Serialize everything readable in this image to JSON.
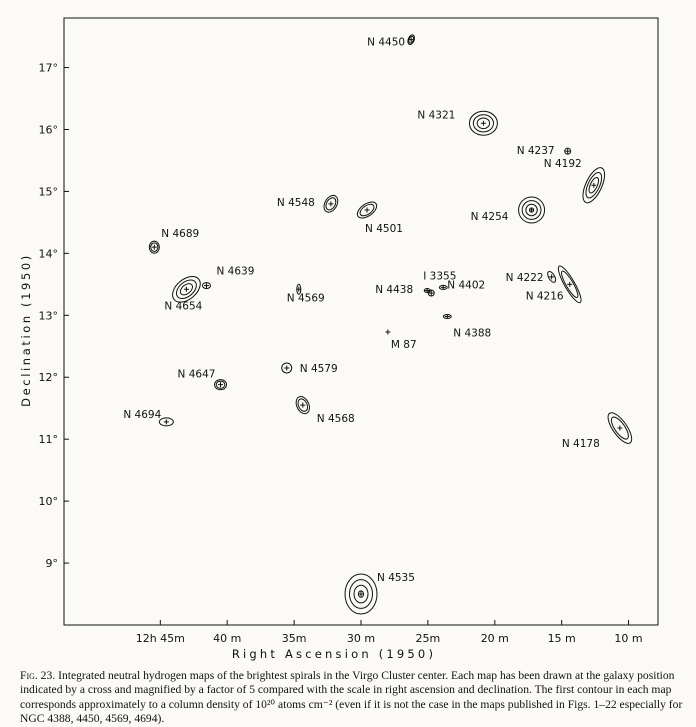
{
  "chart_data": {
    "type": "scatter",
    "xlabel": "Right Ascension (1950)",
    "ylabel": "Declination (1950)",
    "x_ticks": [
      {
        "value": 12.75,
        "label": "12h 45m"
      },
      {
        "value": 12.6667,
        "label": "40 m"
      },
      {
        "value": 12.5833,
        "label": "35m"
      },
      {
        "value": 12.5,
        "label": "30 m"
      },
      {
        "value": 12.4167,
        "label": "25m"
      },
      {
        "value": 12.3333,
        "label": "20 m"
      },
      {
        "value": 12.25,
        "label": "15 m"
      },
      {
        "value": 12.1667,
        "label": "10 m"
      }
    ],
    "y_ticks": [
      {
        "value": 9,
        "label": "9°"
      },
      {
        "value": 10,
        "label": "10°"
      },
      {
        "value": 11,
        "label": "11°"
      },
      {
        "value": 12,
        "label": "12°"
      },
      {
        "value": 13,
        "label": "13°"
      },
      {
        "value": 14,
        "label": "14°"
      },
      {
        "value": 15,
        "label": "15°"
      },
      {
        "value": 16,
        "label": "16°"
      },
      {
        "value": 17,
        "label": "17°"
      }
    ],
    "xlim": [
      12.87,
      12.13
    ],
    "ylim": [
      8.0,
      17.8
    ],
    "points": [
      {
        "name": "N 4450",
        "x": 12.4375,
        "y": 17.45
      },
      {
        "name": "N 4321",
        "x": 12.3475,
        "y": 16.1
      },
      {
        "name": "N 4237",
        "x": 12.2425,
        "y": 15.65
      },
      {
        "name": "N 4192",
        "x": 12.21,
        "y": 15.1
      },
      {
        "name": "N 4254",
        "x": 12.2875,
        "y": 14.7
      },
      {
        "name": "N 4548",
        "x": 12.5375,
        "y": 14.8
      },
      {
        "name": "N 4501",
        "x": 12.4925,
        "y": 14.7
      },
      {
        "name": "N 4689",
        "x": 12.7575,
        "y": 14.1
      },
      {
        "name": "N 4639",
        "x": 12.6925,
        "y": 13.48
      },
      {
        "name": "N 4654",
        "x": 12.7175,
        "y": 13.42
      },
      {
        "name": "N 4569",
        "x": 12.5775,
        "y": 13.42
      },
      {
        "name": "I 3355",
        "x": 12.4175,
        "y": 13.4
      },
      {
        "name": "N 4402",
        "x": 12.3975,
        "y": 13.45
      },
      {
        "name": "N 4438",
        "x": 12.4125,
        "y": 13.36
      },
      {
        "name": "N 4222",
        "x": 12.2625,
        "y": 13.62
      },
      {
        "name": "N 4216",
        "x": 12.24,
        "y": 13.5
      },
      {
        "name": "N 4388",
        "x": 12.3925,
        "y": 12.98
      },
      {
        "name": "M 87",
        "x": 12.4665,
        "y": 12.73
      },
      {
        "name": "N 4579",
        "x": 12.5925,
        "y": 12.15
      },
      {
        "name": "N 4647",
        "x": 12.675,
        "y": 11.88
      },
      {
        "name": "N 4568",
        "x": 12.5725,
        "y": 11.55
      },
      {
        "name": "N 4694",
        "x": 12.7425,
        "y": 11.28
      },
      {
        "name": "N 4178",
        "x": 12.1775,
        "y": 11.18
      },
      {
        "name": "N 4535",
        "x": 12.5,
        "y": 8.5
      }
    ]
  },
  "caption": {
    "label": "Fig. 23.",
    "text": " Integrated neutral hydrogen maps of the brightest spirals in the Virgo Cluster center. Each map has been drawn at the galaxy position indicated by a cross and magnified by a factor of 5 compared with the scale in right ascension and declination. The first contour in each map corresponds approximately to a column density of 10²⁰ atoms cm⁻² (even if it is not the case in the maps published in Figs. 1–22 especially for NGC 4388, 4450, 4569, 4694)."
  }
}
